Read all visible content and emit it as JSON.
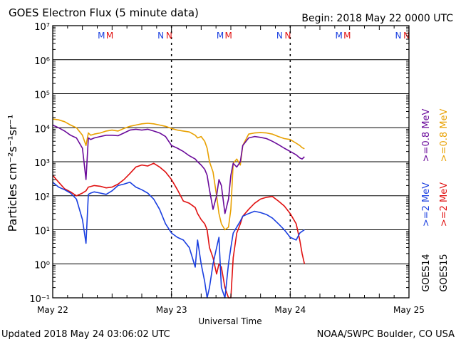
{
  "chart_data": {
    "type": "line",
    "title": "GOES Electron Flux (5 minute data)",
    "begin_label": "Begin: 2018 May 22 0000 UTC",
    "updated_label": "Updated 2018 May 24 03:06:02 UTC",
    "credit_label": "NOAA/SWPC Boulder, CO USA",
    "xlabel": "Universal Time",
    "ylabel": "Particles cm⁻²s⁻¹sr⁻¹",
    "yscale": "log",
    "ylim": [
      0.1,
      10000000
    ],
    "xlim_days": [
      0,
      3
    ],
    "x_tick_labels": [
      "May 22",
      "May 23",
      "May 24",
      "May 25"
    ],
    "y_tick_labels": [
      "10⁻¹",
      "10⁰",
      "10¹",
      "10²",
      "10³",
      "10⁴",
      "10⁵",
      "10⁶",
      "10⁷"
    ],
    "y_tick_exponents": [
      -1,
      0,
      1,
      2,
      3,
      4,
      5,
      6,
      7
    ],
    "threshold": 1000,
    "markers": [
      {
        "label": "M",
        "day": 0.41,
        "color": "#1a3fe0"
      },
      {
        "label": "M",
        "day": 0.48,
        "color": "#e01010"
      },
      {
        "label": "N",
        "day": 0.91,
        "color": "#1a3fe0"
      },
      {
        "label": "N",
        "day": 0.98,
        "color": "#e01010"
      },
      {
        "label": "M",
        "day": 1.41,
        "color": "#1a3fe0"
      },
      {
        "label": "M",
        "day": 1.48,
        "color": "#e01010"
      },
      {
        "label": "N",
        "day": 1.91,
        "color": "#1a3fe0"
      },
      {
        "label": "N",
        "day": 1.98,
        "color": "#e01010"
      },
      {
        "label": "M",
        "day": 2.41,
        "color": "#1a3fe0"
      },
      {
        "label": "M",
        "day": 2.48,
        "color": "#e01010"
      },
      {
        "label": "N",
        "day": 2.91,
        "color": "#1a3fe0"
      },
      {
        "label": "N",
        "day": 2.98,
        "color": "#e01010"
      }
    ],
    "legend": [
      {
        "text": ">=0.8 MeV",
        "color": "#e8a000"
      },
      {
        "text": ">=0.8 MeV",
        "color": "#6a0a9a"
      },
      {
        "text": ">=2 MeV",
        "color": "#e01010"
      },
      {
        "text": ">=2 MeV",
        "color": "#1a3fe0"
      },
      {
        "text": "GOES15",
        "color": "#000000"
      },
      {
        "text": "GOES14",
        "color": "#000000"
      }
    ],
    "series": [
      {
        "name": "GOES15 >=0.8 MeV",
        "color": "#e8a000",
        "x": [
          0,
          0.05,
          0.1,
          0.15,
          0.2,
          0.25,
          0.28,
          0.3,
          0.32,
          0.35,
          0.4,
          0.45,
          0.5,
          0.55,
          0.6,
          0.65,
          0.7,
          0.75,
          0.8,
          0.85,
          0.9,
          0.95,
          1.0,
          1.05,
          1.1,
          1.15,
          1.2,
          1.22,
          1.25,
          1.28,
          1.3,
          1.32,
          1.35,
          1.38,
          1.4,
          1.42,
          1.45,
          1.48,
          1.5,
          1.52,
          1.55,
          1.58,
          1.6,
          1.65,
          1.7,
          1.75,
          1.8,
          1.85,
          1.9,
          1.95,
          2.0,
          2.05,
          2.08,
          2.1,
          2.12
        ],
        "y": [
          18000,
          17000,
          15000,
          12000,
          10000,
          6000,
          3000,
          7000,
          6000,
          6500,
          7000,
          8000,
          8500,
          8000,
          9500,
          11000,
          12000,
          13000,
          13500,
          13000,
          12000,
          11000,
          9500,
          8500,
          8000,
          7500,
          6000,
          5000,
          5500,
          4000,
          2500,
          1000,
          500,
          100,
          30,
          15,
          10,
          12,
          40,
          900,
          1200,
          800,
          3000,
          6500,
          7000,
          7200,
          7000,
          6500,
          5500,
          4800,
          4500,
          3500,
          3000,
          2600,
          2400
        ]
      },
      {
        "name": "GOES15 >=2 MeV",
        "color": "#e01010",
        "x": [
          0,
          0.05,
          0.1,
          0.15,
          0.2,
          0.25,
          0.28,
          0.3,
          0.35,
          0.4,
          0.45,
          0.5,
          0.55,
          0.6,
          0.65,
          0.7,
          0.75,
          0.8,
          0.85,
          0.9,
          0.95,
          1.0,
          1.05,
          1.1,
          1.15,
          1.2,
          1.22,
          1.25,
          1.28,
          1.3,
          1.32,
          1.35,
          1.38,
          1.4,
          1.42,
          1.45,
          1.48,
          1.5,
          1.52,
          1.55,
          1.58,
          1.6,
          1.65,
          1.7,
          1.75,
          1.8,
          1.85,
          1.9,
          1.95,
          2.0,
          2.05,
          2.08,
          2.1,
          2.12
        ],
        "y": [
          400,
          250,
          160,
          130,
          100,
          120,
          140,
          180,
          200,
          190,
          170,
          180,
          220,
          300,
          450,
          700,
          800,
          750,
          900,
          700,
          500,
          300,
          150,
          70,
          60,
          45,
          30,
          20,
          15,
          10,
          3,
          1.5,
          0.5,
          1,
          0.8,
          0.2,
          0.1,
          0.1,
          1.5,
          8,
          15,
          25,
          40,
          60,
          80,
          90,
          95,
          70,
          50,
          30,
          15,
          5,
          2,
          1
        ]
      },
      {
        "name": "GOES14 >=0.8 MeV",
        "color": "#6a0a9a",
        "x": [
          0,
          0.05,
          0.1,
          0.15,
          0.2,
          0.25,
          0.28,
          0.3,
          0.32,
          0.35,
          0.4,
          0.45,
          0.5,
          0.55,
          0.6,
          0.65,
          0.7,
          0.75,
          0.8,
          0.85,
          0.9,
          0.95,
          1.0,
          1.05,
          1.1,
          1.15,
          1.2,
          1.22,
          1.25,
          1.28,
          1.3,
          1.32,
          1.35,
          1.38,
          1.4,
          1.42,
          1.45,
          1.48,
          1.5,
          1.52,
          1.55,
          1.58,
          1.6,
          1.65,
          1.7,
          1.75,
          1.8,
          1.85,
          1.9,
          1.95,
          2.0,
          2.05,
          2.08,
          2.1,
          2.12
        ],
        "y": [
          12000,
          10000,
          8000,
          6000,
          5000,
          2500,
          300,
          5000,
          4500,
          5000,
          5500,
          6000,
          6000,
          5800,
          7000,
          8500,
          9000,
          8500,
          9000,
          8000,
          7000,
          5500,
          3000,
          2500,
          2000,
          1500,
          1200,
          1000,
          800,
          600,
          400,
          150,
          40,
          100,
          300,
          200,
          30,
          80,
          400,
          900,
          700,
          1000,
          3000,
          5000,
          5500,
          5200,
          4800,
          4000,
          3200,
          2500,
          2000,
          1600,
          1300,
          1200,
          1400
        ]
      },
      {
        "name": "GOES14 >=2 MeV",
        "color": "#1a3fe0",
        "x": [
          0,
          0.05,
          0.1,
          0.15,
          0.2,
          0.25,
          0.28,
          0.3,
          0.32,
          0.35,
          0.4,
          0.45,
          0.5,
          0.55,
          0.6,
          0.65,
          0.7,
          0.75,
          0.8,
          0.85,
          0.9,
          0.95,
          1.0,
          1.05,
          1.1,
          1.15,
          1.2,
          1.22,
          1.25,
          1.28,
          1.3,
          1.32,
          1.35,
          1.38,
          1.4,
          1.42,
          1.45,
          1.48,
          1.5,
          1.52,
          1.55,
          1.58,
          1.6,
          1.65,
          1.7,
          1.75,
          1.8,
          1.85,
          1.9,
          1.95,
          2.0,
          2.05,
          2.08,
          2.1,
          2.12
        ],
        "y": [
          250,
          180,
          150,
          120,
          80,
          20,
          4,
          110,
          120,
          130,
          120,
          110,
          140,
          200,
          220,
          250,
          180,
          150,
          120,
          80,
          40,
          15,
          8,
          6,
          5,
          3,
          0.8,
          5,
          1,
          0.3,
          0.1,
          0.2,
          1,
          3,
          6,
          0.2,
          0.1,
          1,
          3,
          8,
          12,
          18,
          25,
          30,
          35,
          32,
          28,
          22,
          15,
          10,
          6,
          5,
          8,
          9,
          10
        ]
      }
    ]
  }
}
